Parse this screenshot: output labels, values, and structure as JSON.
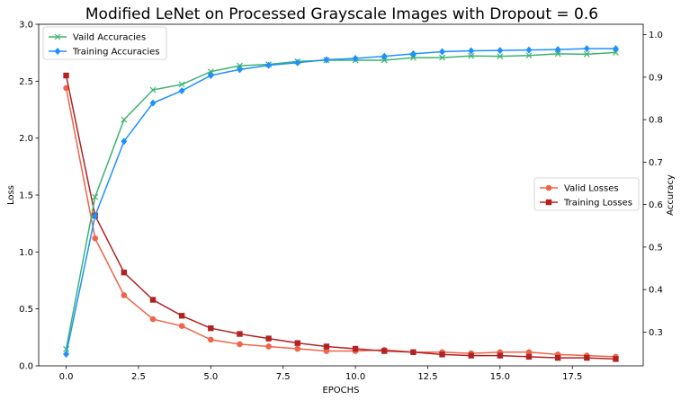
{
  "chart_data": {
    "type": "line",
    "title": "Modified LeNet on Processed Grayscale Images with Dropout = 0.6",
    "xlabel": "EPOCHS",
    "ylabel_left": "Loss",
    "ylabel_right": "Accuracy",
    "xlim": [
      -0.95,
      19.95
    ],
    "ylim_left": [
      0,
      3.0
    ],
    "ylim_right": [
      0.2205,
      1.0245
    ],
    "x_ticks": [
      0.0,
      2.5,
      5.0,
      7.5,
      10.0,
      12.5,
      15.0,
      17.5
    ],
    "x_tick_labels": [
      "0.0",
      "2.5",
      "5.0",
      "7.5",
      "10.0",
      "12.5",
      "15.0",
      "17.5"
    ],
    "y_left_ticks": [
      0.0,
      0.5,
      1.0,
      1.5,
      2.0,
      2.5,
      3.0
    ],
    "y_left_tick_labels": [
      "0.0",
      "0.5",
      "1.0",
      "1.5",
      "2.0",
      "2.5",
      "3.0"
    ],
    "y_right_ticks": [
      0.3,
      0.4,
      0.5,
      0.6,
      0.7,
      0.8,
      0.9,
      1.0
    ],
    "y_right_tick_labels": [
      "0.3",
      "0.4",
      "0.5",
      "0.6",
      "0.7",
      "0.8",
      "0.9",
      "1.0"
    ],
    "x": [
      0,
      1,
      2,
      3,
      4,
      5,
      6,
      7,
      8,
      9,
      10,
      11,
      12,
      13,
      14,
      15,
      16,
      17,
      18,
      19
    ],
    "accuracy_legend": {
      "position": "upper-left"
    },
    "loss_legend": {
      "position": "center-right"
    },
    "accuracy_series": [
      {
        "name": "Vaild Accuracies",
        "color": "#3cb371",
        "marker": "x",
        "axis": "right",
        "values": [
          0.26,
          0.618,
          0.8,
          0.87,
          0.883,
          0.913,
          0.927,
          0.93,
          0.937,
          0.94,
          0.94,
          0.94,
          0.946,
          0.946,
          0.95,
          0.949,
          0.951,
          0.955,
          0.954,
          0.958
        ]
      },
      {
        "name": "Training Accuracies",
        "color": "#1e90ff",
        "marker": "D",
        "axis": "right",
        "values": [
          0.248,
          0.573,
          0.749,
          0.839,
          0.868,
          0.904,
          0.918,
          0.928,
          0.934,
          0.941,
          0.944,
          0.949,
          0.955,
          0.96,
          0.962,
          0.963,
          0.964,
          0.965,
          0.967,
          0.967
        ]
      }
    ],
    "loss_series": [
      {
        "name": "Valid Losses",
        "color": "#f06449",
        "marker": "o",
        "axis": "left",
        "values": [
          2.44,
          1.12,
          0.62,
          0.41,
          0.35,
          0.23,
          0.19,
          0.17,
          0.15,
          0.13,
          0.13,
          0.14,
          0.12,
          0.12,
          0.11,
          0.12,
          0.12,
          0.1,
          0.09,
          0.08
        ]
      },
      {
        "name": "Training Losses",
        "color": "#b22222",
        "marker": "s",
        "axis": "left",
        "values": [
          2.55,
          1.32,
          0.82,
          0.58,
          0.44,
          0.33,
          0.28,
          0.24,
          0.2,
          0.17,
          0.15,
          0.13,
          0.12,
          0.1,
          0.09,
          0.09,
          0.08,
          0.07,
          0.07,
          0.06
        ]
      }
    ]
  }
}
